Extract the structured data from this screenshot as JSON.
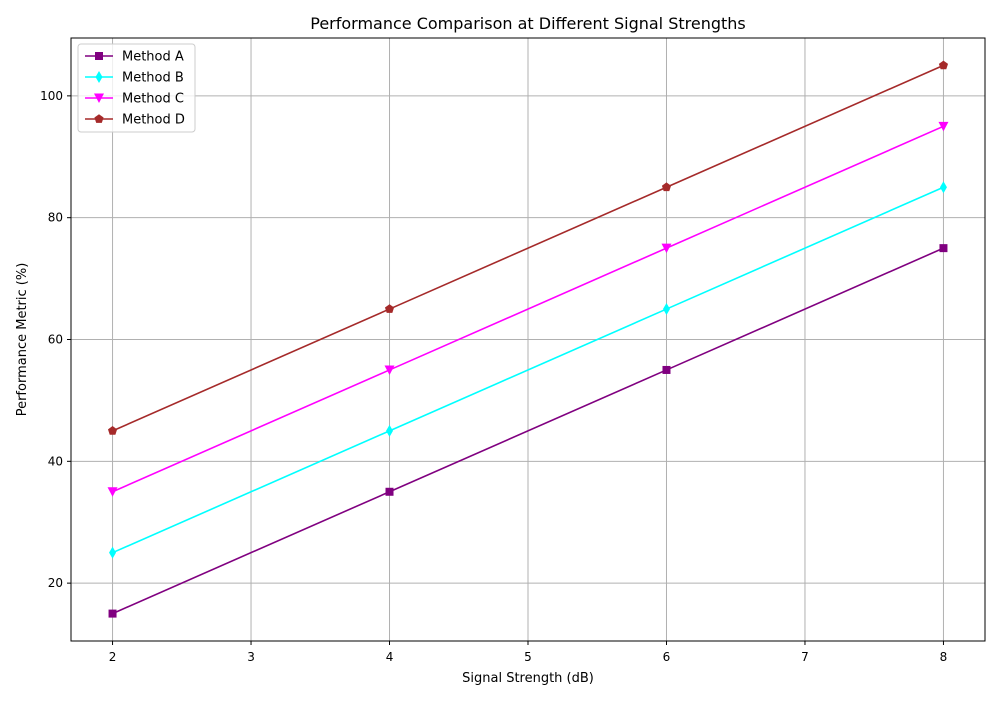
{
  "chart_data": {
    "type": "line",
    "title": "Performance Comparison at Different Signal Strengths",
    "xlabel": "Signal Strength (dB)",
    "ylabel": "Performance Metric (%)",
    "x": [
      2,
      4,
      6,
      8
    ],
    "xlim": [
      1.7,
      8.3
    ],
    "ylim": [
      10.5,
      109.5
    ],
    "xticks": [
      2,
      3,
      4,
      5,
      6,
      7,
      8
    ],
    "yticks": [
      20,
      40,
      60,
      80,
      100
    ],
    "grid": true,
    "legend_position": "upper-left",
    "series": [
      {
        "name": "Method A",
        "values": [
          15,
          35,
          55,
          75
        ],
        "color": "#800080",
        "marker": "square"
      },
      {
        "name": "Method B",
        "values": [
          25,
          45,
          65,
          85
        ],
        "color": "#00ffff",
        "marker": "thin-diamond"
      },
      {
        "name": "Method C",
        "values": [
          35,
          55,
          75,
          95
        ],
        "color": "#ff00ff",
        "marker": "triangle-down"
      },
      {
        "name": "Method D",
        "values": [
          45,
          65,
          85,
          105
        ],
        "color": "#a52a2a",
        "marker": "pentagon"
      }
    ]
  }
}
